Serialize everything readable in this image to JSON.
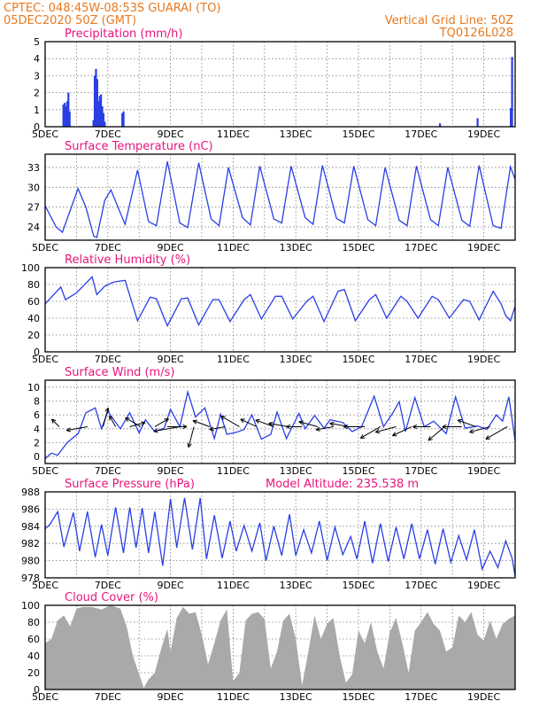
{
  "header": {
    "line1": "CPTEC:   048:45W-08:53S   GUARAI (TO)",
    "line2": "05DEC2020  50Z  (GMT)",
    "grid_note": "Vertical Grid Line: 50Z",
    "code": "TQ0126L028"
  },
  "colors": {
    "header": "#e8781e",
    "panel_title": "#e8147d",
    "series": "#2a3fe6",
    "cloud": "#a9a9a9",
    "grid": "#7d7d7d"
  },
  "x_labels": [
    "5DEC",
    "7DEC",
    "9DEC",
    "11DEC",
    "13DEC",
    "15DEC",
    "17DEC",
    "19DEC"
  ],
  "chart_data": [
    {
      "id": "precip",
      "type": "bar",
      "title": "Precipitation  (mm/h)",
      "ylim": [
        0,
        5
      ],
      "yticks": [
        0,
        1,
        2,
        3,
        4,
        5
      ],
      "xlim": [
        5.0,
        20.0
      ],
      "grid": true,
      "x": [
        5.58,
        5.62,
        5.66,
        5.7,
        5.74,
        5.78,
        6.54,
        6.58,
        6.62,
        6.66,
        6.7,
        6.74,
        6.78,
        6.82,
        6.86,
        6.9,
        7.46,
        7.5,
        17.6,
        18.8,
        19.86,
        19.9
      ],
      "values": [
        1.3,
        1.4,
        1.2,
        1.5,
        2.0,
        0.9,
        0.4,
        3.0,
        3.4,
        2.8,
        1.5,
        1.8,
        1.9,
        1.2,
        0.8,
        0.3,
        0.8,
        0.9,
        0.2,
        0.5,
        1.1,
        4.1
      ]
    },
    {
      "id": "temp",
      "type": "line",
      "title": "Surface Temperature (nC)",
      "ylim": [
        22,
        35
      ],
      "yticks": [
        24,
        27,
        30,
        33
      ],
      "xlim": [
        5.0,
        20.0
      ],
      "grid": true,
      "x": [
        5.0,
        5.35,
        5.55,
        6.05,
        6.3,
        6.55,
        6.65,
        6.9,
        7.1,
        7.55,
        7.95,
        8.3,
        8.55,
        8.9,
        9.3,
        9.55,
        9.9,
        10.3,
        10.55,
        10.85,
        11.3,
        11.55,
        11.85,
        12.3,
        12.55,
        12.85,
        13.3,
        13.55,
        13.85,
        14.3,
        14.55,
        14.85,
        15.3,
        15.55,
        15.85,
        16.3,
        16.55,
        16.85,
        17.3,
        17.55,
        17.85,
        18.3,
        18.55,
        18.85,
        19.3,
        19.55,
        19.85,
        20.0
      ],
      "values": [
        27.2,
        24.0,
        23.2,
        29.8,
        27.0,
        22.6,
        22.4,
        28.0,
        29.6,
        24.4,
        32.6,
        24.8,
        24.2,
        33.9,
        24.6,
        23.9,
        33.7,
        25.2,
        24.2,
        33.0,
        25.4,
        24.3,
        33.2,
        25.2,
        24.6,
        33.2,
        25.4,
        24.4,
        33.3,
        25.3,
        24.6,
        33.2,
        25.1,
        24.2,
        33.0,
        25.0,
        24.2,
        33.2,
        25.1,
        24.2,
        33.0,
        25.0,
        24.1,
        33.3,
        24.2,
        23.8,
        33.1,
        31.2
      ]
    },
    {
      "id": "rh",
      "type": "line",
      "title": "Relative Humidity  (%)",
      "ylim": [
        0,
        100
      ],
      "yticks": [
        0,
        20,
        40,
        60,
        80,
        100
      ],
      "xlim": [
        5.0,
        20.0
      ],
      "grid": true,
      "x": [
        5.0,
        5.5,
        5.65,
        6.0,
        6.5,
        6.65,
        6.9,
        7.2,
        7.55,
        7.95,
        8.35,
        8.55,
        8.9,
        9.35,
        9.55,
        9.9,
        10.35,
        10.55,
        10.9,
        11.35,
        11.55,
        11.9,
        12.35,
        12.55,
        12.9,
        13.35,
        13.55,
        13.9,
        14.35,
        14.55,
        14.9,
        15.35,
        15.55,
        15.9,
        16.35,
        16.55,
        16.9,
        17.35,
        17.55,
        17.9,
        18.35,
        18.55,
        18.85,
        19.3,
        19.55,
        19.7,
        19.85,
        20.0
      ],
      "values": [
        57,
        77,
        62,
        70,
        89,
        68,
        78,
        83,
        85,
        37,
        65,
        63,
        31,
        63,
        64,
        32,
        62,
        62,
        36,
        62,
        68,
        39,
        66,
        66,
        39,
        60,
        66,
        36,
        72,
        74,
        37,
        62,
        68,
        40,
        66,
        60,
        40,
        66,
        62,
        40,
        62,
        60,
        38,
        72,
        57,
        43,
        37,
        54
      ]
    },
    {
      "id": "wind",
      "type": "line",
      "title": "Surface Wind  (m/s)",
      "ylim": [
        -1,
        11
      ],
      "yticks": [
        0,
        2,
        4,
        6,
        8,
        10
      ],
      "xlim": [
        5.0,
        20.0
      ],
      "grid": true,
      "x": [
        5.0,
        5.2,
        5.4,
        5.7,
        6.05,
        6.3,
        6.6,
        6.8,
        7.0,
        7.4,
        7.7,
        8.0,
        8.2,
        8.5,
        8.8,
        9.0,
        9.3,
        9.55,
        9.8,
        10.1,
        10.4,
        10.6,
        10.8,
        11.1,
        11.35,
        11.6,
        11.9,
        12.2,
        12.4,
        12.7,
        13.1,
        13.3,
        13.6,
        13.9,
        14.1,
        14.5,
        14.8,
        15.1,
        15.5,
        15.8,
        16.1,
        16.3,
        16.5,
        16.8,
        17.1,
        17.4,
        17.8,
        18.1,
        18.4,
        18.8,
        19.1,
        19.4,
        19.6,
        19.8,
        20.0
      ],
      "values": [
        -0.3,
        0.5,
        0.2,
        2.0,
        3.3,
        6.3,
        7.0,
        4.0,
        6.5,
        4.0,
        6.3,
        3.4,
        5.3,
        3.6,
        4.1,
        6.8,
        4.3,
        9.3,
        5.7,
        7.0,
        2.6,
        6.1,
        3.2,
        3.5,
        3.9,
        6.0,
        2.5,
        3.2,
        6.4,
        2.6,
        6.2,
        4.0,
        5.9,
        4.1,
        5.3,
        4.9,
        3.6,
        4.3,
        8.7,
        4.3,
        6.3,
        7.9,
        3.6,
        8.5,
        4.3,
        5.1,
        3.3,
        8.6,
        4.1,
        4.4,
        3.9,
        6.0,
        5.1,
        8.6,
        2.3
      ]
    },
    {
      "id": "pressure",
      "type": "line",
      "title": "Surface Pressure (hPa)",
      "annotation": "Model Altitude: 235.538  m",
      "ylim": [
        978,
        988
      ],
      "yticks": [
        978,
        980,
        982,
        984,
        986,
        988
      ],
      "xlim": [
        5.0,
        20.0
      ],
      "grid": true,
      "x": [
        5.0,
        5.15,
        5.4,
        5.6,
        5.9,
        6.1,
        6.35,
        6.6,
        6.8,
        7.0,
        7.25,
        7.5,
        7.7,
        7.9,
        8.1,
        8.3,
        8.5,
        8.75,
        9.0,
        9.2,
        9.45,
        9.7,
        9.95,
        10.15,
        10.4,
        10.65,
        10.9,
        11.1,
        11.35,
        11.6,
        11.85,
        12.05,
        12.3,
        12.55,
        12.8,
        13.0,
        13.25,
        13.5,
        13.75,
        14.0,
        14.25,
        14.5,
        14.75,
        14.95,
        15.2,
        15.45,
        15.7,
        15.95,
        16.2,
        16.45,
        16.7,
        16.95,
        17.2,
        17.45,
        17.7,
        17.95,
        18.2,
        18.45,
        18.7,
        18.95,
        19.2,
        19.45,
        19.7,
        19.9,
        20.0
      ],
      "values": [
        983.7,
        984.2,
        985.7,
        981.6,
        985.6,
        981.1,
        985.7,
        980.4,
        984.2,
        980.6,
        986.2,
        980.9,
        986.2,
        981.5,
        986.1,
        980.9,
        985.7,
        979.4,
        987.2,
        981.5,
        987.3,
        981.3,
        987.3,
        980.2,
        985.3,
        980.3,
        984.6,
        981.1,
        984.1,
        981.1,
        984.4,
        980.0,
        984.0,
        980.6,
        985.4,
        980.6,
        983.6,
        980.9,
        984.6,
        980.0,
        983.9,
        980.7,
        982.8,
        980.2,
        984.6,
        979.7,
        984.3,
        979.9,
        983.9,
        980.2,
        984.3,
        980.2,
        983.6,
        979.6,
        983.7,
        979.8,
        982.9,
        980.1,
        983.6,
        979.0,
        981.1,
        979.2,
        982.3,
        980.3,
        978.2
      ]
    },
    {
      "id": "cloud",
      "type": "area",
      "title": "Cloud Cover  (%)",
      "ylim": [
        0,
        100
      ],
      "yticks": [
        0,
        20,
        40,
        60,
        80,
        100
      ],
      "xlim": [
        5.0,
        20.0
      ],
      "grid": true,
      "x": [
        5.0,
        5.2,
        5.4,
        5.6,
        5.8,
        6.0,
        6.2,
        6.5,
        6.8,
        7.1,
        7.4,
        7.6,
        7.8,
        8.0,
        8.15,
        8.3,
        8.5,
        8.7,
        8.9,
        9.0,
        9.2,
        9.4,
        9.6,
        9.8,
        10.0,
        10.2,
        10.4,
        10.6,
        10.8,
        11.0,
        11.2,
        11.4,
        11.6,
        11.8,
        12.0,
        12.2,
        12.4,
        12.6,
        12.8,
        13.0,
        13.2,
        13.4,
        13.6,
        13.8,
        14.0,
        14.2,
        14.4,
        14.6,
        14.8,
        15.0,
        15.2,
        15.4,
        15.6,
        15.8,
        16.0,
        16.2,
        16.4,
        16.6,
        16.8,
        17.0,
        17.2,
        17.4,
        17.6,
        17.8,
        18.0,
        18.2,
        18.4,
        18.6,
        18.8,
        19.0,
        19.2,
        19.4,
        19.6,
        19.8,
        20.0
      ],
      "values": [
        55,
        60,
        82,
        88,
        75,
        96,
        98,
        98,
        95,
        100,
        96,
        75,
        40,
        18,
        2,
        12,
        20,
        48,
        72,
        45,
        85,
        98,
        90,
        92,
        65,
        30,
        55,
        82,
        95,
        10,
        20,
        82,
        90,
        92,
        84,
        25,
        45,
        82,
        90,
        60,
        5,
        45,
        88,
        60,
        78,
        85,
        40,
        8,
        18,
        70,
        55,
        80,
        45,
        25,
        68,
        85,
        55,
        20,
        70,
        80,
        92,
        78,
        70,
        45,
        50,
        88,
        80,
        92,
        65,
        58,
        82,
        60,
        78,
        84,
        88
      ]
    }
  ],
  "wind_arrows": {
    "positions": [
      5.45,
      6.35,
      6.85,
      7.25,
      7.7,
      8.05,
      8.5,
      8.9,
      9.3,
      9.75,
      10.25,
      10.75,
      11.2,
      11.75,
      12.3,
      12.75,
      13.2,
      13.7,
      14.2,
      14.7,
      15.2,
      15.7,
      16.2,
      16.7,
      17.3,
      17.75,
      18.3,
      18.75,
      19.2,
      19.75
    ],
    "angles": [
      315,
      260,
      15,
      330,
      75,
      300,
      60,
      90,
      260,
      195,
      290,
      260,
      300,
      295,
      290,
      280,
      270,
      285,
      260,
      280,
      270,
      240,
      255,
      245,
      270,
      230,
      270,
      290,
      255,
      240
    ],
    "lengths": [
      12,
      24,
      22,
      14,
      18,
      20,
      18,
      22,
      30,
      24,
      20,
      18,
      24,
      20,
      22,
      22,
      18,
      22,
      20,
      22,
      24,
      26,
      24,
      24,
      20,
      24,
      22,
      22,
      24,
      28
    ]
  }
}
